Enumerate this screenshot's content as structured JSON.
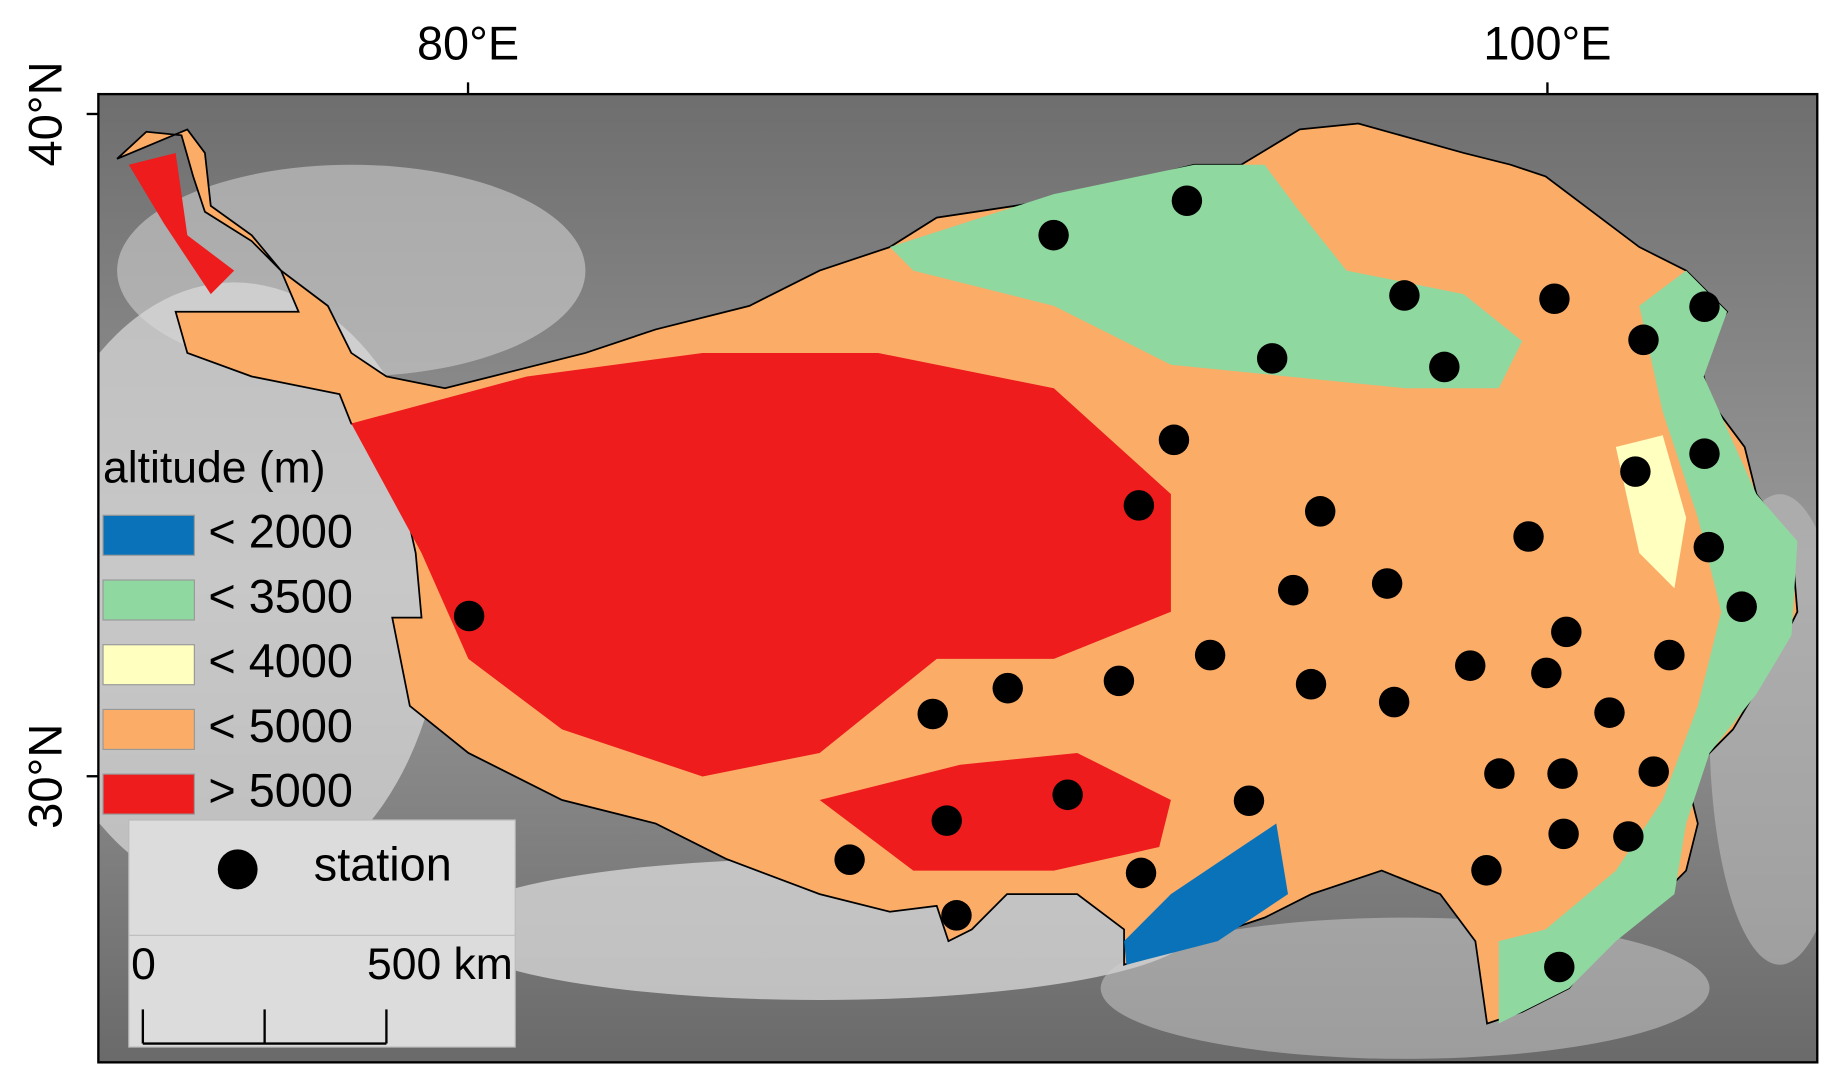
{
  "chart_data": {
    "type": "scatter",
    "xlim": [
      73.15,
      105.0
    ],
    "ylim": [
      25.68,
      40.3
    ],
    "xticks": [
      {
        "value": 80,
        "label": "80°E"
      },
      {
        "value": 100,
        "label": "100°E"
      }
    ],
    "yticks": [
      {
        "value": 30,
        "label": "30°N"
      },
      {
        "value": 40,
        "label": "40°N"
      }
    ],
    "altitude_legend": {
      "title": "altitude (m)",
      "labels": [
        "< 2000",
        "< 3500",
        "< 4000",
        "< 5000",
        "> 5000"
      ],
      "colors": [
        "#0a72b8",
        "#8fd9a0",
        "#ffffc0",
        "#fbad68",
        "#ee1c1c"
      ]
    },
    "series": [
      {
        "name": "station",
        "color": "#000000",
        "x": [
          90.85,
          93.32,
          97.35,
          100.13,
          102.91,
          101.78,
          94.9,
          98.09,
          93.08,
          102.91,
          101.63,
          92.43,
          95.79,
          99.65,
          102.99,
          95.29,
          97.03,
          103.6,
          100.35,
          102.26,
          80.02,
          93.75,
          98.57,
          99.98,
          92.06,
          90.0,
          95.62,
          88.61,
          97.16,
          101.15,
          99.11,
          100.28,
          101.97,
          91.11,
          94.47,
          88.87,
          100.3,
          101.5,
          87.07,
          92.47,
          98.87,
          89.05,
          100.22
        ],
        "values": [
          38.17,
          38.69,
          37.26,
          37.21,
          37.09,
          36.59,
          36.31,
          36.18,
          35.08,
          34.87,
          34.6,
          34.09,
          34.0,
          33.62,
          33.46,
          32.81,
          32.91,
          32.56,
          32.18,
          31.83,
          32.42,
          31.83,
          31.67,
          31.56,
          31.44,
          31.33,
          31.39,
          30.94,
          31.12,
          30.96,
          30.04,
          30.04,
          30.07,
          29.72,
          29.63,
          29.33,
          29.13,
          29.09,
          28.74,
          28.54,
          28.58,
          27.9,
          27.12
        ]
      }
    ],
    "scalebar": {
      "ticks": [
        0,
        {
          "value": 500,
          "label": "500 km"
        }
      ]
    }
  }
}
